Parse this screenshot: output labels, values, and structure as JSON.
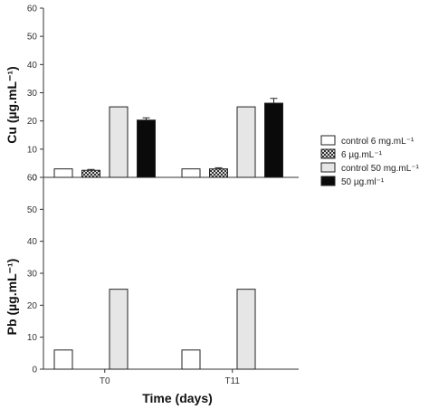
{
  "chart_data": [
    {
      "type": "bar",
      "panel": "top",
      "categories": [
        "T0",
        "T11"
      ],
      "ylabel": "Cu (µg.mL⁻¹)",
      "ylim": [
        0,
        60
      ],
      "yticks": [
        0,
        10,
        20,
        30,
        40,
        50,
        60
      ],
      "show_x_ticklabels": false,
      "series": [
        {
          "name": "control 6 mg.mL⁻¹",
          "values": [
            3,
            3
          ],
          "errors": [
            0,
            0
          ]
        },
        {
          "name": "6 µg.mL⁻¹",
          "values": [
            2.5,
            3
          ],
          "errors": [
            0.3,
            0.4
          ]
        },
        {
          "name": "control 50 mg.mL⁻¹",
          "values": [
            25,
            25
          ],
          "errors": [
            0,
            0
          ]
        },
        {
          "name": "50 µg.ml⁻¹",
          "values": [
            20.3,
            26.3
          ],
          "errors": [
            0.8,
            1.7
          ]
        }
      ]
    },
    {
      "type": "bar",
      "panel": "bottom",
      "categories": [
        "T0",
        "T11"
      ],
      "ylabel": "Pb (µg.mL⁻¹)",
      "xlabel": "Time (days)",
      "ylim": [
        0,
        60
      ],
      "yticks": [
        0,
        10,
        20,
        30,
        40,
        50,
        60
      ],
      "show_x_ticklabels": true,
      "series": [
        {
          "name": "control 6 mg.mL⁻¹",
          "values": [
            6,
            6
          ],
          "errors": [
            0,
            0
          ]
        },
        {
          "name": "6 µg.mL⁻¹",
          "values": [
            0,
            0
          ],
          "errors": [
            0,
            0
          ]
        },
        {
          "name": "control 50 mg.mL⁻¹",
          "values": [
            25,
            25
          ],
          "errors": [
            0,
            0
          ]
        },
        {
          "name": "50 µg.ml⁻¹",
          "values": [
            0,
            0
          ],
          "errors": [
            0,
            0
          ]
        }
      ]
    }
  ],
  "legend": {
    "placement": "right",
    "entries": [
      {
        "label": "control 6 mg.mL⁻¹",
        "pattern": "white"
      },
      {
        "label": "6 µg.mL⁻¹",
        "pattern": "checker"
      },
      {
        "label": "control 50 mg.mL⁻¹",
        "pattern": "light-gray"
      },
      {
        "label": "50 µg.ml⁻¹",
        "pattern": "black"
      }
    ]
  },
  "colors": {
    "white_bar": "#ffffff",
    "light_gray_bar": "#e6e6e6",
    "black_bar": "#0a0a0a",
    "checker_dark": "#333333",
    "checker_light": "#d8d8d8",
    "axis": "#333333"
  }
}
